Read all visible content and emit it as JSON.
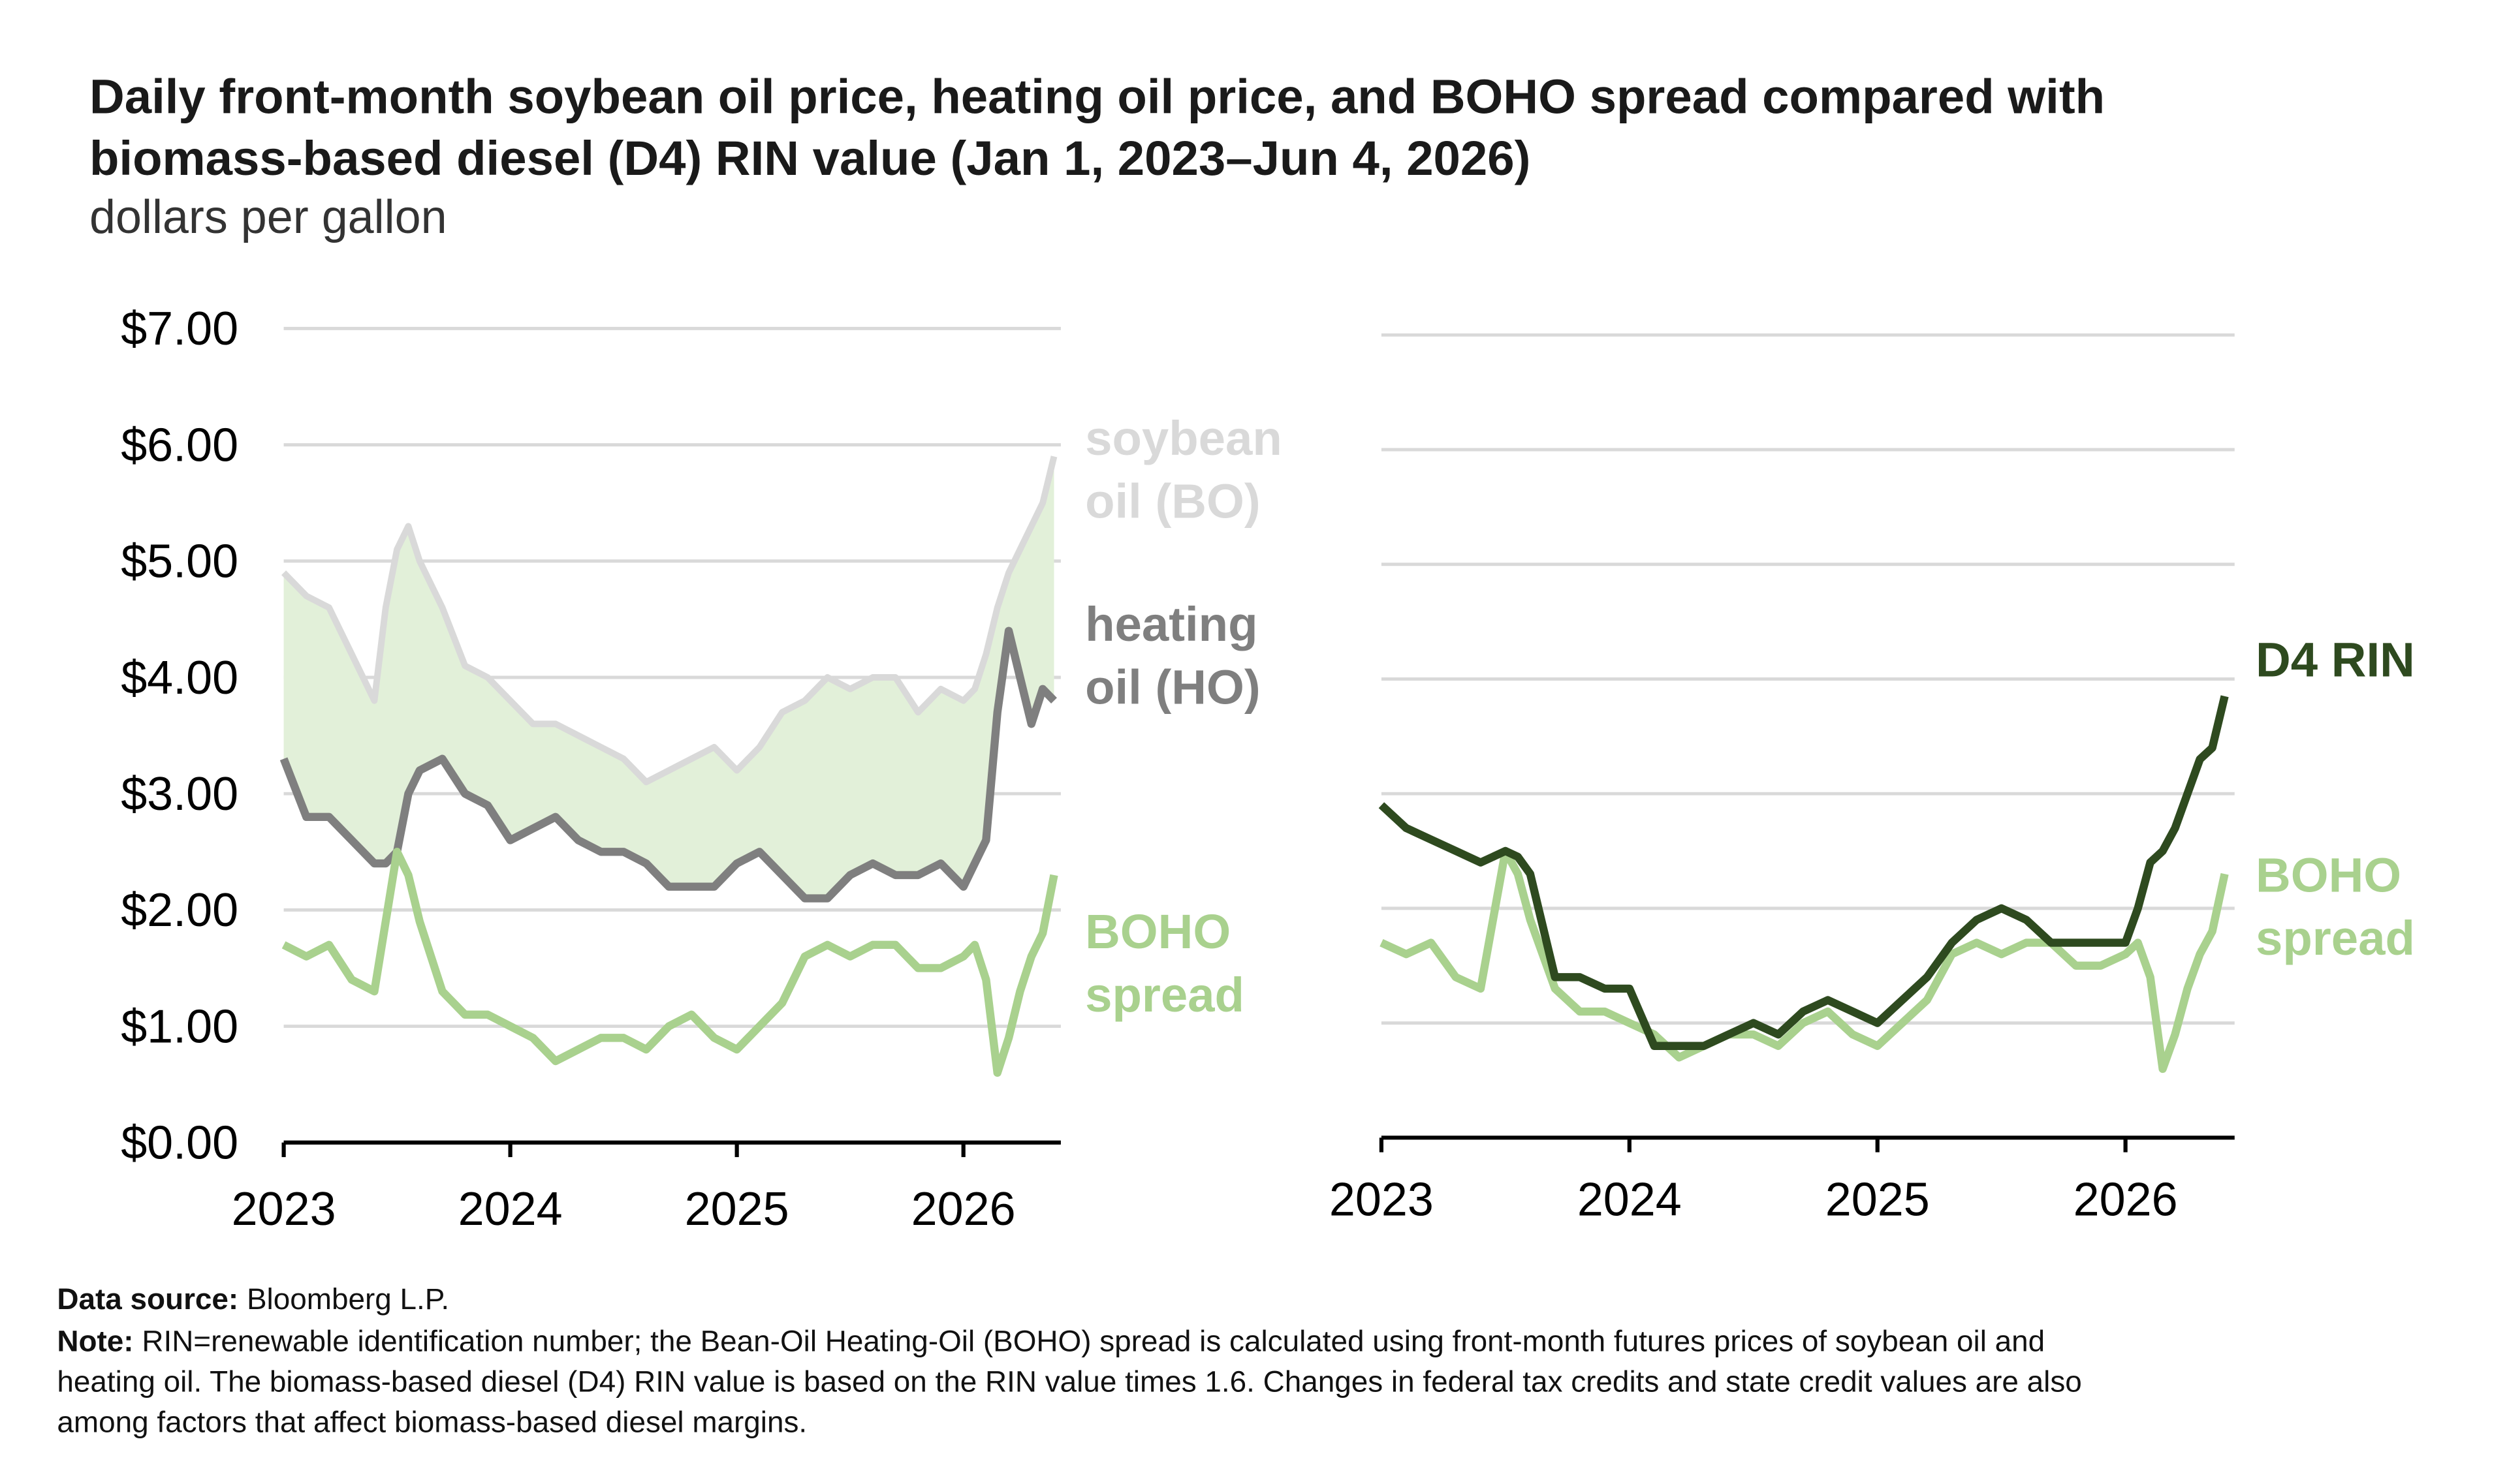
{
  "header": {
    "title": [
      "Daily front-month soybean oil price, heating oil price, and BOHO spread compared with",
      "biomass-based diesel (D4) RIN value (Jan 1, 2023–Jun 4, 2026)"
    ],
    "subtitle": "dollars per gallon"
  },
  "chart_data": [
    {
      "type": "line",
      "x": [
        2023.0,
        2023.1,
        2023.2,
        2023.3,
        2023.4,
        2023.45,
        2023.5,
        2023.55,
        2023.6,
        2023.7,
        2023.8,
        2023.9,
        2024.0,
        2024.1,
        2024.2,
        2024.3,
        2024.4,
        2024.5,
        2024.6,
        2024.7,
        2024.8,
        2024.9,
        2025.0,
        2025.1,
        2025.2,
        2025.3,
        2025.4,
        2025.5,
        2025.6,
        2025.7,
        2025.8,
        2025.9,
        2026.0,
        2026.05,
        2026.1,
        2026.15,
        2026.2,
        2026.25,
        2026.3,
        2026.35,
        2026.4
      ],
      "series": [
        {
          "name": "soybean oil (BO)",
          "color": "#d9d9d9",
          "values": [
            4.9,
            4.7,
            4.6,
            4.2,
            3.8,
            4.6,
            5.1,
            5.3,
            5.0,
            4.6,
            4.1,
            4.0,
            3.8,
            3.6,
            3.6,
            3.5,
            3.4,
            3.3,
            3.1,
            3.2,
            3.3,
            3.4,
            3.2,
            3.4,
            3.7,
            3.8,
            4.0,
            3.9,
            4.0,
            4.0,
            3.7,
            3.9,
            3.8,
            3.9,
            4.2,
            4.6,
            4.9,
            5.1,
            5.3,
            5.5,
            5.9
          ]
        },
        {
          "name": "heating oil (HO)",
          "color": "#7f7f7f",
          "values": [
            3.3,
            2.8,
            2.8,
            2.6,
            2.4,
            2.4,
            2.5,
            3.0,
            3.2,
            3.3,
            3.0,
            2.9,
            2.6,
            2.7,
            2.8,
            2.6,
            2.5,
            2.5,
            2.4,
            2.2,
            2.2,
            2.2,
            2.4,
            2.5,
            2.3,
            2.1,
            2.1,
            2.3,
            2.4,
            2.3,
            2.3,
            2.4,
            2.2,
            2.4,
            2.6,
            3.7,
            4.4,
            4.0,
            3.6,
            3.9,
            3.8
          ]
        },
        {
          "name": "BOHO spread",
          "color": "#a9d18e",
          "values": [
            1.7,
            1.6,
            1.7,
            1.4,
            1.3,
            1.9,
            2.5,
            2.3,
            1.9,
            1.3,
            1.1,
            1.1,
            1.0,
            0.9,
            0.7,
            0.8,
            0.9,
            0.9,
            0.8,
            1.0,
            1.1,
            0.9,
            0.8,
            1.0,
            1.2,
            1.6,
            1.7,
            1.6,
            1.7,
            1.7,
            1.5,
            1.5,
            1.6,
            1.7,
            1.4,
            0.6,
            0.9,
            1.3,
            1.6,
            1.8,
            2.3
          ]
        }
      ],
      "band_fill": "#e2f0d9",
      "xlim": [
        2023,
        2026.43
      ],
      "xticks": [
        2023,
        2024,
        2025,
        2026
      ],
      "ylim": [
        0,
        7
      ],
      "yticks": [
        {
          "value": 0,
          "label": "$0.00"
        },
        {
          "value": 1,
          "label": "$1.00"
        },
        {
          "value": 2,
          "label": "$2.00"
        },
        {
          "value": 3,
          "label": "$3.00"
        },
        {
          "value": 4,
          "label": "$4.00"
        },
        {
          "value": 5,
          "label": "$5.00"
        },
        {
          "value": 6,
          "label": "$6.00"
        },
        {
          "value": 7,
          "label": "$7.00"
        }
      ],
      "grid": true
    },
    {
      "type": "line",
      "x": [
        2023.0,
        2023.1,
        2023.2,
        2023.3,
        2023.4,
        2023.45,
        2023.5,
        2023.55,
        2023.6,
        2023.7,
        2023.8,
        2023.9,
        2024.0,
        2024.1,
        2024.2,
        2024.3,
        2024.4,
        2024.5,
        2024.6,
        2024.7,
        2024.8,
        2024.9,
        2025.0,
        2025.1,
        2025.2,
        2025.3,
        2025.4,
        2025.5,
        2025.6,
        2025.7,
        2025.8,
        2025.9,
        2026.0,
        2026.05,
        2026.1,
        2026.15,
        2026.2,
        2026.25,
        2026.3,
        2026.35,
        2026.4
      ],
      "series": [
        {
          "name": "BOHO spread",
          "color": "#a9d18e",
          "values": [
            1.7,
            1.6,
            1.7,
            1.4,
            1.3,
            1.9,
            2.5,
            2.3,
            1.9,
            1.3,
            1.1,
            1.1,
            1.0,
            0.9,
            0.7,
            0.8,
            0.9,
            0.9,
            0.8,
            1.0,
            1.1,
            0.9,
            0.8,
            1.0,
            1.2,
            1.6,
            1.7,
            1.6,
            1.7,
            1.7,
            1.5,
            1.5,
            1.6,
            1.7,
            1.4,
            0.6,
            0.9,
            1.3,
            1.6,
            1.8,
            2.3
          ]
        },
        {
          "name": "D4 RIN",
          "color": "#2e4a1f",
          "values": [
            2.9,
            2.7,
            2.6,
            2.5,
            2.4,
            2.45,
            2.5,
            2.45,
            2.3,
            1.4,
            1.4,
            1.3,
            1.3,
            0.8,
            0.8,
            0.8,
            0.9,
            1.0,
            0.9,
            1.1,
            1.2,
            1.1,
            1.0,
            1.2,
            1.4,
            1.7,
            1.9,
            2.0,
            1.9,
            1.7,
            1.7,
            1.7,
            1.7,
            2.0,
            2.4,
            2.5,
            2.7,
            3.0,
            3.3,
            3.4,
            3.85
          ]
        }
      ],
      "xlim": [
        2023,
        2026.44
      ],
      "xticks": [
        2023,
        2024,
        2025,
        2026
      ],
      "ylim": [
        0,
        7
      ],
      "yticks": [
        1,
        2,
        3,
        4,
        5,
        6,
        7
      ],
      "grid": true
    }
  ],
  "footer": {
    "source_label": "Data source:",
    "source": "Bloomberg L.P.",
    "note_label": "Note:",
    "note_lines": [
      "RIN=renewable identification number; the Bean-Oil Heating-Oil (BOHO) spread is calculated using front-month futures prices of soybean oil and",
      "heating oil. The biomass-based diesel (D4) RIN value is based on the RIN value times 1.6. Changes in federal tax credits and state credit values are also",
      "among factors that affect biomass-based diesel margins."
    ]
  }
}
